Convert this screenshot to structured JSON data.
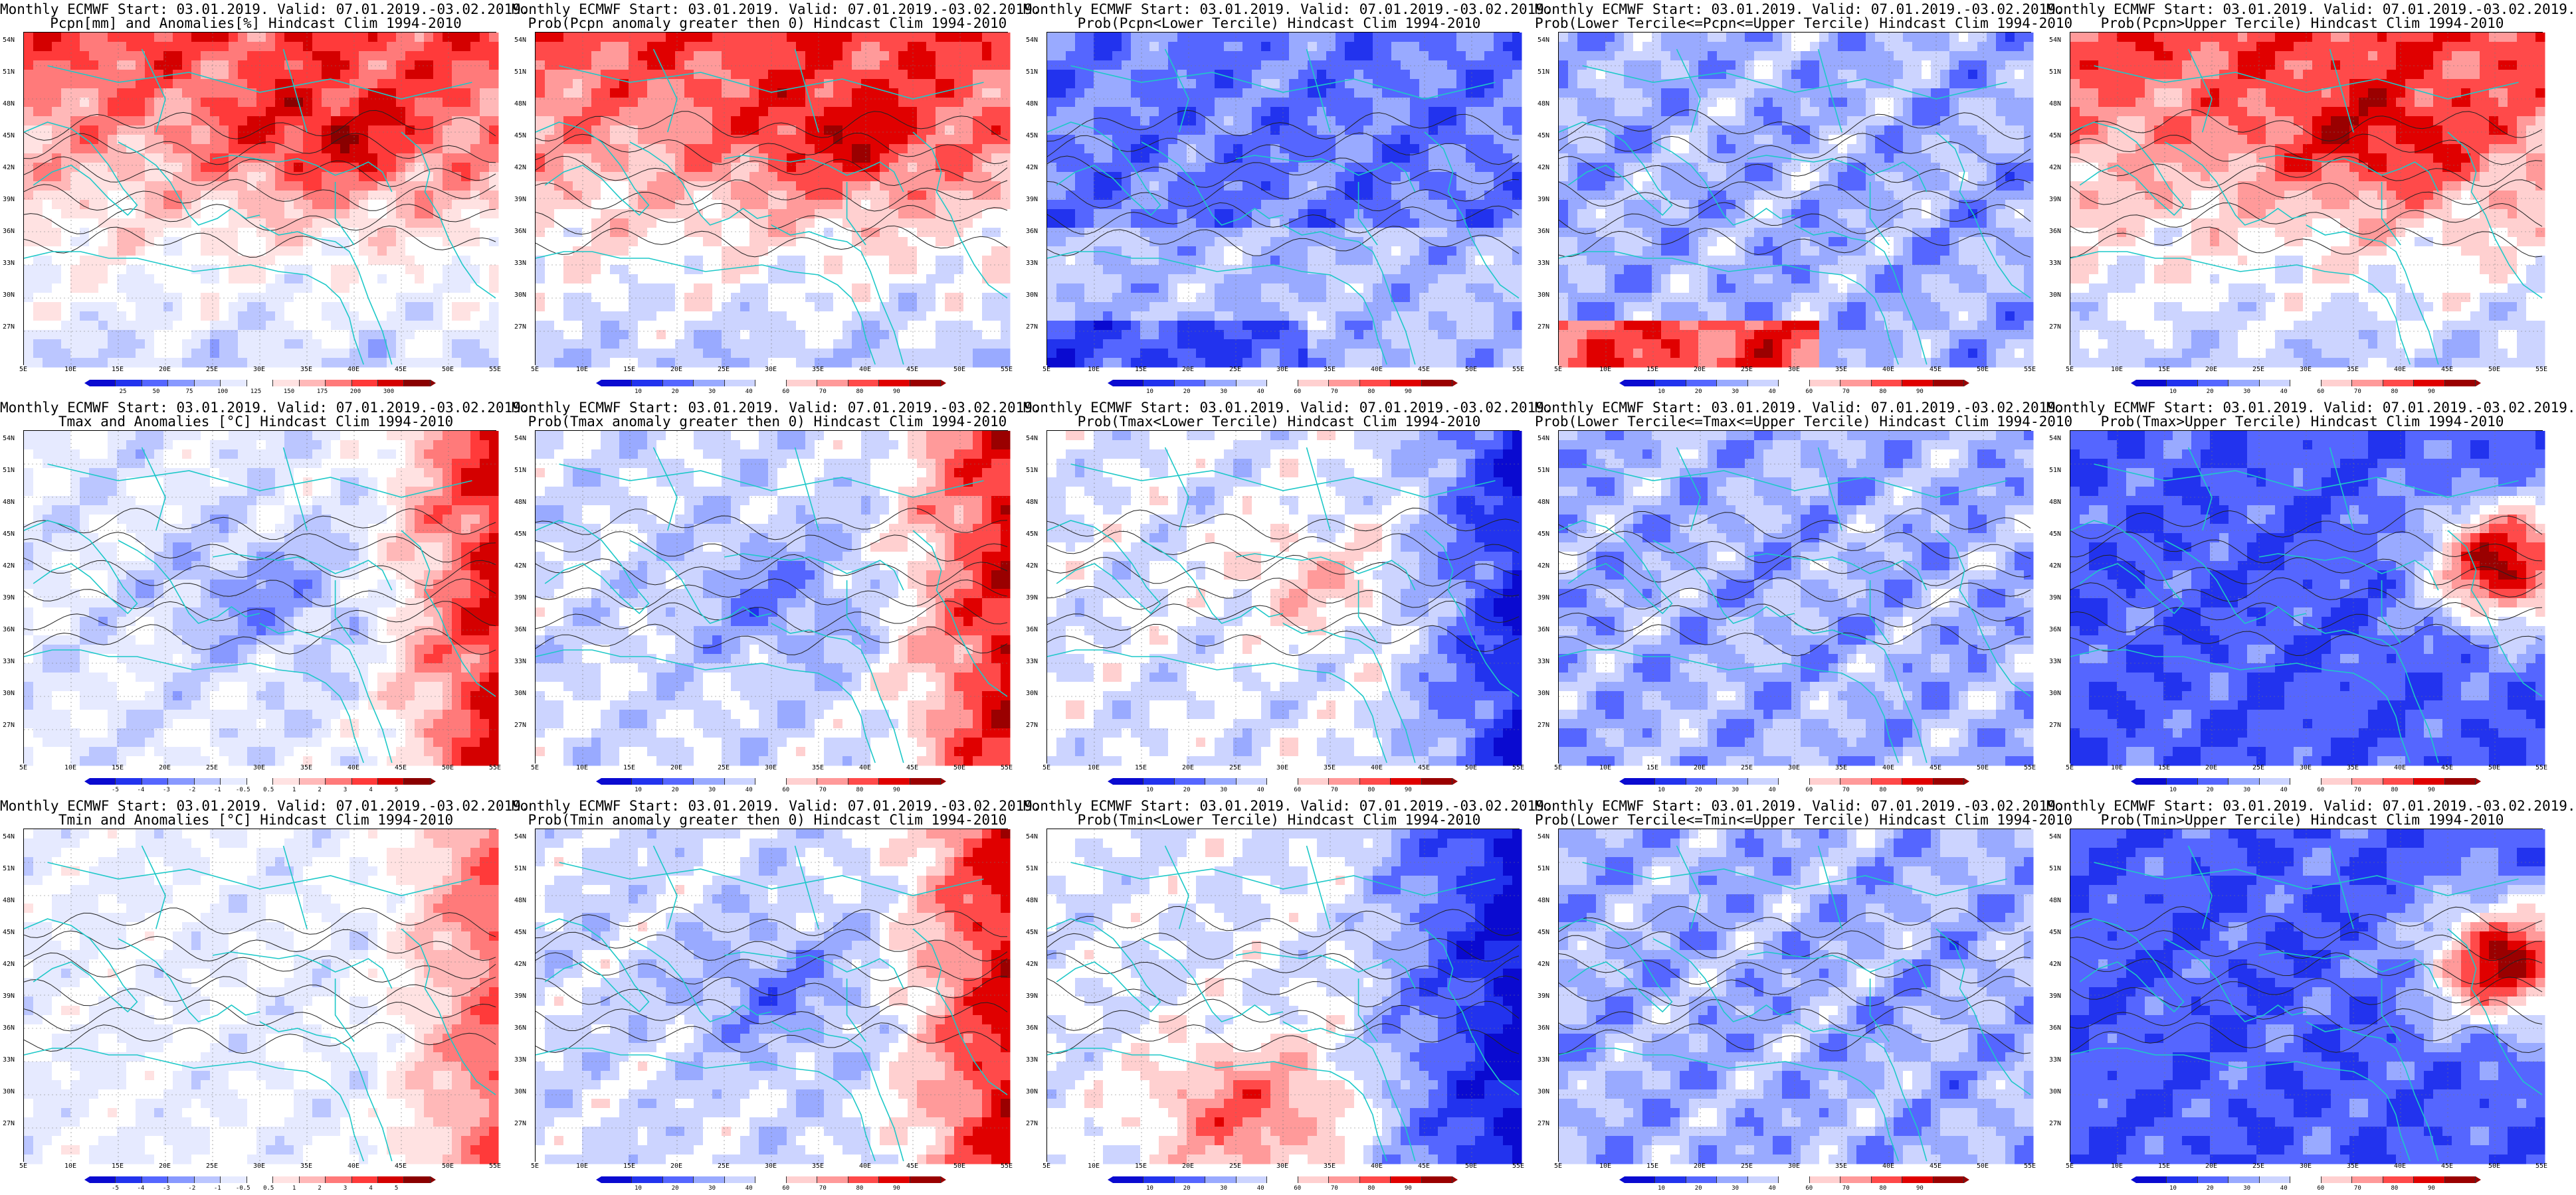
{
  "figure": {
    "lat_ticks": [
      "54N",
      "51N",
      "48N",
      "45N",
      "42N",
      "39N",
      "36N",
      "33N",
      "30N",
      "27N"
    ],
    "lon_ticks": [
      "5E",
      "10E",
      "15E",
      "20E",
      "25E",
      "30E",
      "35E",
      "40E",
      "45E",
      "50E",
      "55E"
    ],
    "header": "Monthly ECMWF Start: 03.01.2019. Valid: 07.01.2019.-03.02.2019.",
    "colors": {
      "coast": "#1ec8c8",
      "contour": "#222222",
      "scale_prob": [
        "#0a0ad0",
        "#2233ee",
        "#5566ff",
        "#99aaff",
        "#ccd4ff",
        "#ffffff",
        "#ffd0d0",
        "#ff9a9a",
        "#ff4a4a",
        "#e00000",
        "#9a0000"
      ],
      "scale_anom": [
        "#0a0ad0",
        "#2233ee",
        "#5566ff",
        "#8899ff",
        "#bbc6ff",
        "#e6eaff",
        "#ffffff",
        "#ffe2e2",
        "#ffb8b8",
        "#ff7a7a",
        "#ff3a3a",
        "#d40000",
        "#8a0000"
      ]
    }
  },
  "panels": [
    {
      "title1": "Monthly ECMWF Start: 03.01.2019. Valid: 07.01.2019.-03.02.2019.",
      "title2": "Pcpn[mm] and Anomalies[%] Hindcast Clim 1994-2010",
      "scale": "anom",
      "labels": [
        "25",
        "50",
        "75",
        "100",
        "125",
        "150",
        "175",
        "200",
        "300"
      ],
      "pattern": "wet_north"
    },
    {
      "title1": "Monthly ECMWF Start: 03.01.2019. Valid: 07.01.2019.-03.02.2019.",
      "title2": "Prob(Pcpn anomaly greater then 0) Hindcast Clim 1994-2010",
      "scale": "prob",
      "labels": [
        "10",
        "20",
        "30",
        "40",
        "60",
        "70",
        "80",
        "90"
      ],
      "pattern": "wet_north"
    },
    {
      "title1": "Monthly ECMWF Start: 03.01.2019. Valid: 07.01.2019.-03.02.2019.",
      "title2": "Prob(Pcpn<Lower Tercile) Hindcast Clim 1994-2010",
      "scale": "prob",
      "labels": [
        "10",
        "20",
        "30",
        "40",
        "60",
        "70",
        "80",
        "90"
      ],
      "pattern": "dry_low"
    },
    {
      "title1": "Monthly ECMWF Start: 03.01.2019. Valid: 07.01.2019.-03.02.2019.",
      "title2": "Prob(Lower Tercile<=Pcpn<=Upper Tercile) Hindcast Clim 1994-2010",
      "scale": "prob",
      "labels": [
        "10",
        "20",
        "30",
        "40",
        "60",
        "70",
        "80",
        "90"
      ],
      "pattern": "mid_low"
    },
    {
      "title1": "Monthly ECMWF Start: 03.01.2019. Valid: 07.01.2019.-03.02.2019.",
      "title2": "Prob(Pcpn>Upper Tercile) Hindcast Clim 1994-2010",
      "scale": "prob",
      "labels": [
        "10",
        "20",
        "30",
        "40",
        "60",
        "70",
        "80",
        "90"
      ],
      "pattern": "wet_north"
    },
    {
      "title1": "Monthly ECMWF Start: 03.01.2019. Valid: 07.01.2019.-03.02.2019.",
      "title2": "Tmax and Anomalies [°C] Hindcast Clim 1994-2010",
      "scale": "anom",
      "labels": [
        "-5",
        "-4",
        "-3",
        "-2",
        "-1",
        "-0.5",
        "0.5",
        "1",
        "2",
        "3",
        "4",
        "5"
      ],
      "pattern": "warm_east"
    },
    {
      "title1": "Monthly ECMWF Start: 03.01.2019. Valid: 07.01.2019.-03.02.2019.",
      "title2": "Prob(Tmax anomaly greater then 0) Hindcast Clim 1994-2010",
      "scale": "prob",
      "labels": [
        "10",
        "20",
        "30",
        "40",
        "60",
        "70",
        "80",
        "90"
      ],
      "pattern": "warm_east"
    },
    {
      "title1": "Monthly ECMWF Start: 03.01.2019. Valid: 07.01.2019.-03.02.2019.",
      "title2": "Prob(Tmax<Lower Tercile) Hindcast Clim 1994-2010",
      "scale": "prob",
      "labels": [
        "10",
        "20",
        "30",
        "40",
        "60",
        "70",
        "80",
        "90"
      ],
      "pattern": "cold_east"
    },
    {
      "title1": "Monthly ECMWF Start: 03.01.2019. Valid: 07.01.2019.-03.02.2019.",
      "title2": "Prob(Lower Tercile<=Tmax<=Upper Tercile) Hindcast Clim 1994-2010",
      "scale": "prob",
      "labels": [
        "10",
        "20",
        "30",
        "40",
        "60",
        "70",
        "80",
        "90"
      ],
      "pattern": "mid_low"
    },
    {
      "title1": "Monthly ECMWF Start: 03.01.2019. Valid: 07.01.2019.-03.02.2019.",
      "title2": "Prob(Tmax>Upper Tercile) Hindcast Clim 1994-2010",
      "scale": "prob",
      "labels": [
        "10",
        "20",
        "30",
        "40",
        "60",
        "70",
        "80",
        "90"
      ],
      "pattern": "deep_blue"
    },
    {
      "title1": "Monthly ECMWF Start: 03.01.2019. Valid: 07.01.2019.-03.02.2019.",
      "title2": "Tmin and Anomalies [°C] Hindcast Clim 1994-2010",
      "scale": "anom",
      "labels": [
        "-5",
        "-4",
        "-3",
        "-2",
        "-1",
        "-0.5",
        "0.5",
        "1",
        "2",
        "3",
        "4",
        "5"
      ],
      "pattern": "warm_east_light"
    },
    {
      "title1": "Monthly ECMWF Start: 03.01.2019. Valid: 07.01.2019.-03.02.2019.",
      "title2": "Prob(Tmin anomaly greater then 0) Hindcast Clim 1994-2010",
      "scale": "prob",
      "labels": [
        "10",
        "20",
        "30",
        "40",
        "60",
        "70",
        "80",
        "90"
      ],
      "pattern": "warm_east"
    },
    {
      "title1": "Monthly ECMWF Start: 03.01.2019. Valid: 07.01.2019.-03.02.2019.",
      "title2": "Prob(Tmin<Lower Tercile) Hindcast Clim 1994-2010",
      "scale": "prob",
      "labels": [
        "10",
        "20",
        "30",
        "40",
        "60",
        "70",
        "80",
        "90"
      ],
      "pattern": "cold_east_south_warm"
    },
    {
      "title1": "Monthly ECMWF Start: 03.01.2019. Valid: 07.01.2019.-03.02.2019.",
      "title2": "Prob(Lower Tercile<=Tmin<=Upper Tercile) Hindcast Clim 1994-2010",
      "scale": "prob",
      "labels": [
        "10",
        "20",
        "30",
        "40",
        "60",
        "70",
        "80",
        "90"
      ],
      "pattern": "mid_low"
    },
    {
      "title1": "Monthly ECMWF Start: 03.01.2019. Valid: 07.01.2019.-03.02.2019.",
      "title2": "Prob(Tmin>Upper Tercile) Hindcast Clim 1994-2010",
      "scale": "prob",
      "labels": [
        "10",
        "20",
        "30",
        "40",
        "60",
        "70",
        "80",
        "90"
      ],
      "pattern": "deep_blue"
    }
  ]
}
